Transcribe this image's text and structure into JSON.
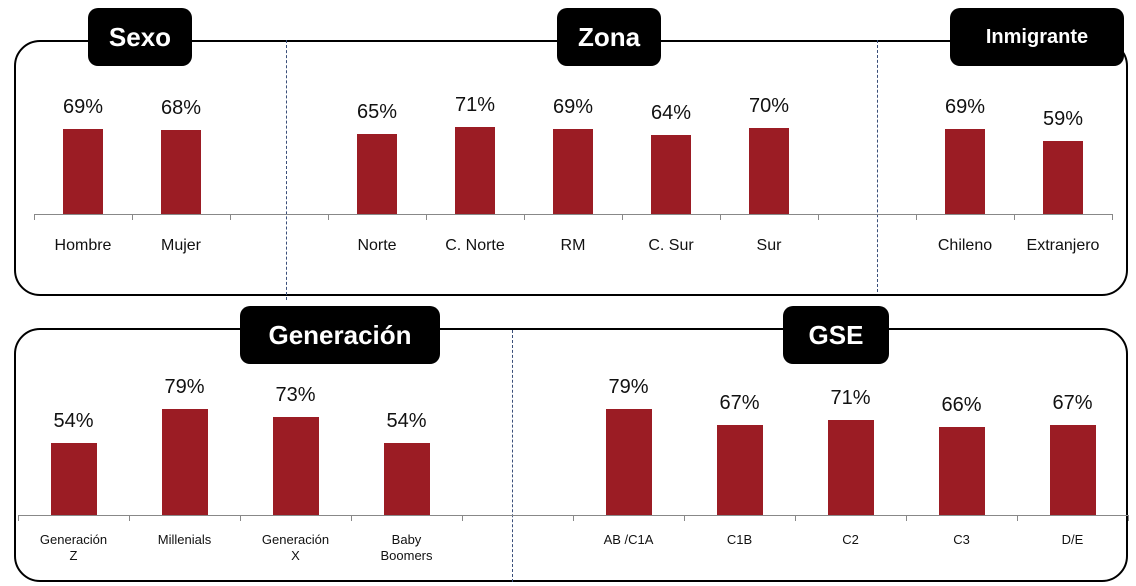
{
  "chart_data": [
    {
      "type": "bar",
      "title": "Sexo",
      "categories": [
        "Hombre",
        "Mujer"
      ],
      "values": [
        69,
        68
      ],
      "value_labels": [
        "69%",
        "68%"
      ],
      "color": "#9b1c24"
    },
    {
      "type": "bar",
      "title": "Zona",
      "categories": [
        "Norte",
        "C. Norte",
        "RM",
        "C. Sur",
        "Sur"
      ],
      "values": [
        65,
        71,
        69,
        64,
        70
      ],
      "value_labels": [
        "65%",
        "71%",
        "69%",
        "64%",
        "70%"
      ],
      "color": "#9b1c24"
    },
    {
      "type": "bar",
      "title": "Inmigrante",
      "categories": [
        "Chileno",
        "Extranjero"
      ],
      "values": [
        69,
        59
      ],
      "value_labels": [
        "69%",
        "59%"
      ],
      "color": "#9b1c24"
    },
    {
      "type": "bar",
      "title": "Generación",
      "categories": [
        "Generación Z",
        "Millenials",
        "Generación X",
        "Baby Boomers"
      ],
      "values": [
        54,
        79,
        73,
        54
      ],
      "value_labels": [
        "54%",
        "79%",
        "73%",
        "54%"
      ],
      "color": "#9b1c24"
    },
    {
      "type": "bar",
      "title": "GSE",
      "categories": [
        "AB /C1A",
        "C1B",
        "C2",
        "C3",
        "D/E"
      ],
      "values": [
        79,
        67,
        71,
        66,
        67
      ],
      "value_labels": [
        "79%",
        "67%",
        "71%",
        "66%",
        "67%"
      ],
      "color": "#9b1c24"
    }
  ]
}
